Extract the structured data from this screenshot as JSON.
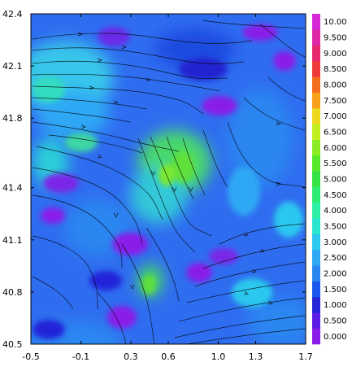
{
  "chart_data": {
    "type": "heatmap",
    "x_ticks": [
      "-0.5",
      "-0.1",
      "0.3",
      "0.6",
      "1.0",
      "1.3",
      "1.7"
    ],
    "x_tick_values": [
      -0.5,
      -0.1,
      0.3,
      0.6,
      1.0,
      1.3,
      1.7
    ],
    "y_ticks": [
      "40.5",
      "40.8",
      "41.1",
      "41.4",
      "41.8",
      "42.1",
      "42.4"
    ],
    "y_tick_values": [
      40.5,
      40.8,
      41.1,
      41.4,
      41.8,
      42.1,
      42.4
    ],
    "xlim": [
      -0.5,
      1.7
    ],
    "ylim": [
      40.5,
      42.4
    ],
    "colorbar": {
      "labels": [
        "0.000",
        "0.500",
        "1.000",
        "1.500",
        "2.000",
        "2.500",
        "3.000",
        "3.500",
        "4.000",
        "4.500",
        "5.000",
        "5.500",
        "6.000",
        "6.500",
        "7.000",
        "7.500",
        "8.000",
        "8.500",
        "9.000",
        "9.500",
        "10.00"
      ],
      "colors": [
        "#8a1ee8",
        "#5a1ee8",
        "#2424d8",
        "#1858ec",
        "#2a86f0",
        "#2ea8f4",
        "#2cc8ee",
        "#28e6d2",
        "#2ef0a6",
        "#2cec72",
        "#34e444",
        "#56e82a",
        "#8cec24",
        "#c2f01e",
        "#ecd81c",
        "#f8a01a",
        "#f46c1e",
        "#ee3a3a",
        "#e8286e",
        "#e028a6",
        "#d628d8"
      ]
    },
    "overlay": "streamlines"
  }
}
